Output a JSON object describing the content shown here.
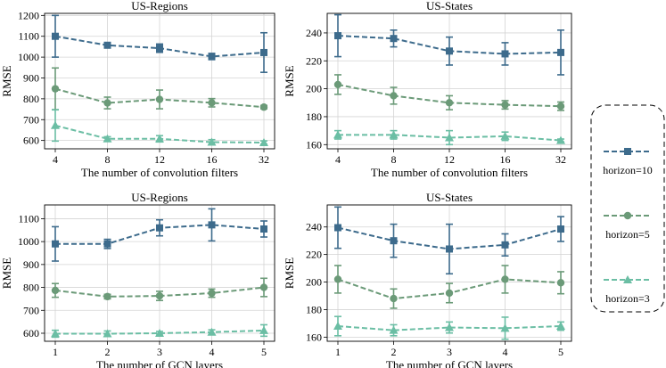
{
  "legend": {
    "entries": [
      {
        "label": "horizon=10",
        "color": "#3d6b8c",
        "marker": "square"
      },
      {
        "label": "horizon=5",
        "color": "#6b9a78",
        "marker": "circle"
      },
      {
        "label": "horizon=3",
        "color": "#6bbea4",
        "marker": "triangle"
      }
    ]
  },
  "chart_data": [
    {
      "type": "line",
      "title": "US-Regions",
      "xlabel": "The number of convolution filters",
      "ylabel": "RMSE",
      "categories": [
        "4",
        "8",
        "12",
        "16",
        "32"
      ],
      "ylim": [
        560,
        1210
      ],
      "yticks": [
        600,
        700,
        800,
        900,
        1000,
        1100,
        1200
      ],
      "series": [
        {
          "name": "horizon=10",
          "values": [
            1100,
            1057,
            1043,
            1003,
            1022
          ],
          "errors": [
            100,
            12,
            20,
            15,
            95
          ]
        },
        {
          "name": "horizon=5",
          "values": [
            848,
            780,
            797,
            781,
            760
          ],
          "errors": [
            100,
            28,
            45,
            20,
            8
          ]
        },
        {
          "name": "horizon=3",
          "values": [
            672,
            608,
            608,
            592,
            590
          ],
          "errors": [
            75,
            10,
            15,
            12,
            8
          ]
        }
      ]
    },
    {
      "type": "line",
      "title": "US-States",
      "xlabel": "The number of convolution filters",
      "ylabel": "RMSE",
      "categories": [
        "4",
        "8",
        "12",
        "16",
        "32"
      ],
      "ylim": [
        157,
        254
      ],
      "yticks": [
        160,
        180,
        200,
        220,
        240
      ],
      "series": [
        {
          "name": "horizon=10",
          "values": [
            238,
            236,
            227,
            225,
            226
          ],
          "errors": [
            15,
            6,
            10,
            8,
            16
          ]
        },
        {
          "name": "horizon=5",
          "values": [
            203,
            195,
            190,
            188.5,
            187.5
          ],
          "errors": [
            7,
            6,
            5,
            3,
            3
          ]
        },
        {
          "name": "horizon=3",
          "values": [
            167,
            167,
            165,
            166,
            163
          ],
          "errors": [
            3,
            3,
            5,
            3,
            1
          ]
        }
      ]
    },
    {
      "type": "line",
      "title": "US-Regions",
      "xlabel": "The number of GCN layers",
      "ylabel": "RMSE",
      "categories": [
        "1",
        "2",
        "3",
        "4",
        "5"
      ],
      "ylim": [
        565,
        1160
      ],
      "yticks": [
        600,
        700,
        800,
        900,
        1000,
        1100
      ],
      "series": [
        {
          "name": "horizon=10",
          "values": [
            990,
            990,
            1060,
            1073,
            1055
          ],
          "errors": [
            75,
            20,
            35,
            70,
            35
          ]
        },
        {
          "name": "horizon=5",
          "values": [
            787,
            760,
            763,
            775,
            800
          ],
          "errors": [
            30,
            10,
            20,
            18,
            40
          ]
        },
        {
          "name": "horizon=3",
          "values": [
            598,
            598,
            600,
            605,
            612
          ],
          "errors": [
            15,
            12,
            8,
            10,
            25
          ]
        }
      ]
    },
    {
      "type": "line",
      "title": "US-States",
      "xlabel": "The number of GCN layers",
      "ylabel": "RMSE",
      "categories": [
        "1",
        "2",
        "3",
        "4",
        "5"
      ],
      "ylim": [
        157,
        256
      ],
      "yticks": [
        160,
        180,
        200,
        220,
        240
      ],
      "series": [
        {
          "name": "horizon=10",
          "values": [
            239.5,
            230,
            224,
            227,
            238.5
          ],
          "errors": [
            15,
            12,
            18,
            8,
            9
          ]
        },
        {
          "name": "horizon=5",
          "values": [
            202,
            188,
            192,
            202,
            199.5
          ],
          "errors": [
            10,
            7,
            7,
            10,
            8
          ]
        },
        {
          "name": "horizon=3",
          "values": [
            168,
            165,
            167,
            166.5,
            168
          ],
          "errors": [
            7,
            4,
            4,
            8,
            3
          ]
        }
      ]
    }
  ]
}
